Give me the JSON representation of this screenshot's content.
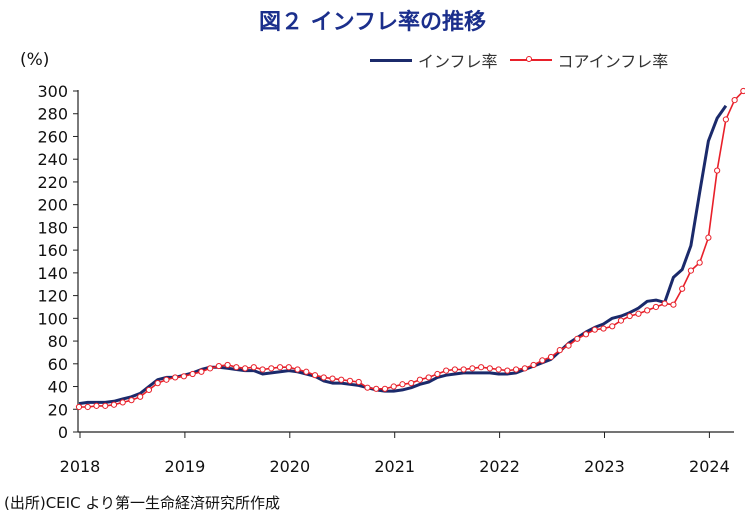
{
  "chart_data": {
    "type": "line",
    "title": "図２ インフレ率の推移",
    "unit_label": "(%)",
    "source_note": "(出所)CEIC より第一生命経済研究所作成",
    "ylim": [
      0,
      300
    ],
    "y_ticks": [
      "0",
      "20",
      "40",
      "60",
      "80",
      "100",
      "120",
      "140",
      "160",
      "180",
      "200",
      "220",
      "240",
      "260",
      "280",
      "300"
    ],
    "x_ticks": [
      "2018",
      "2019",
      "2020",
      "2021",
      "2022",
      "2023",
      "2024"
    ],
    "x_start": "2018-01",
    "legend_position": "top-right",
    "grid": false,
    "series": [
      {
        "name": "インフレ率",
        "color": "#1b2a6b",
        "marker": "none",
        "values": [
          25,
          26,
          26,
          26,
          27,
          29,
          31,
          34,
          40,
          46,
          48,
          48,
          50,
          52,
          55,
          57,
          57,
          56,
          55,
          54,
          54,
          51,
          52,
          53,
          54,
          53,
          51,
          49,
          45,
          43,
          43,
          42,
          41,
          39,
          37,
          36,
          36,
          37,
          39,
          42,
          44,
          48,
          50,
          51,
          52,
          52,
          52,
          52,
          51,
          51,
          52,
          55,
          58,
          61,
          64,
          71,
          78,
          83,
          88,
          92,
          95,
          100,
          102,
          105,
          109,
          115,
          116,
          114,
          136,
          143,
          164,
          211,
          256,
          276,
          287
        ]
      },
      {
        "name": "コアインフレ率",
        "color": "#e8202a",
        "marker": "circle",
        "values": [
          22,
          22,
          23,
          23,
          24,
          26,
          28,
          31,
          37,
          43,
          46,
          48,
          49,
          51,
          53,
          56,
          58,
          59,
          57,
          56,
          57,
          55,
          56,
          57,
          57,
          55,
          53,
          50,
          48,
          47,
          46,
          45,
          44,
          39,
          38,
          38,
          40,
          42,
          43,
          46,
          48,
          51,
          54,
          55,
          55,
          56,
          57,
          56,
          55,
          54,
          55,
          56,
          59,
          63,
          66,
          72,
          76,
          82,
          86,
          90,
          91,
          93,
          98,
          102,
          104,
          107,
          110,
          113,
          112,
          126,
          142,
          149,
          171,
          230,
          275,
          292,
          300
        ]
      }
    ]
  }
}
